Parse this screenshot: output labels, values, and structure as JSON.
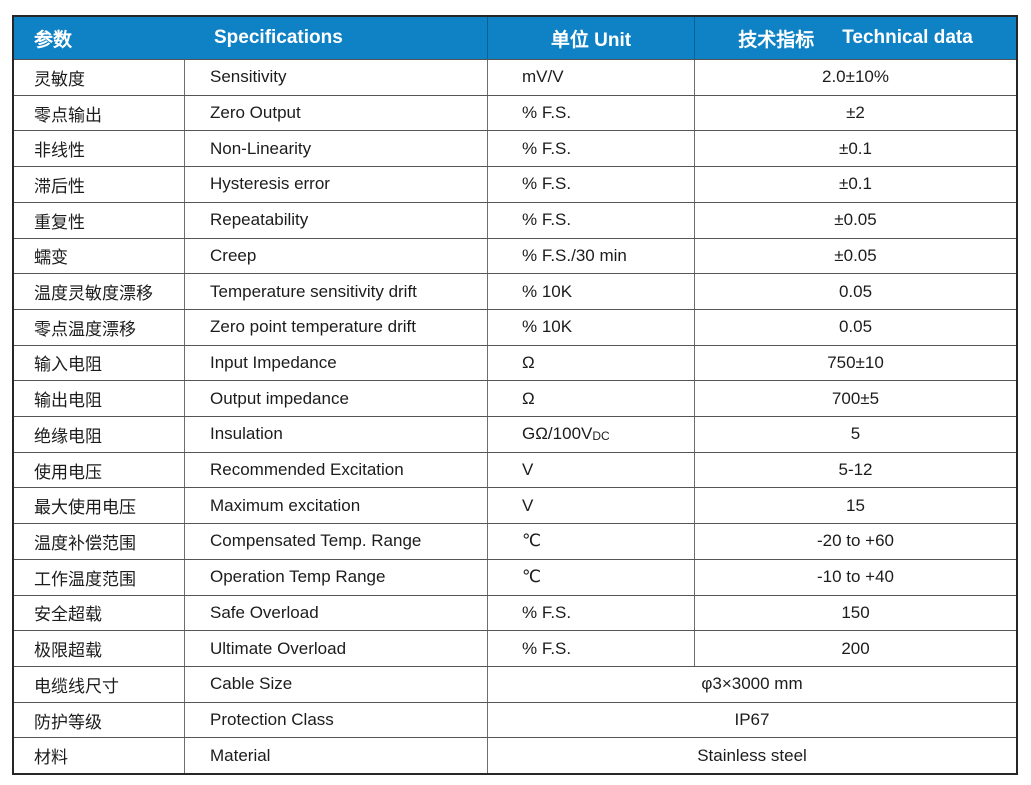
{
  "header": {
    "col1": "参数",
    "col2": "Specifications",
    "col3": "单位 Unit",
    "col4_zh": "技术指标",
    "col4_en": "Technical data"
  },
  "colors": {
    "header_bg": "#0f82c6",
    "header_text": "#ffffff",
    "body_text": "#1c1c1c",
    "grid_line": "#555555",
    "outer_border": "#262626"
  },
  "rows": [
    {
      "param_zh": "灵敏度",
      "spec_en": "Sensitivity",
      "unit": "mV/V",
      "unit_small": "",
      "value": "2.0±10%"
    },
    {
      "param_zh": "零点输出",
      "spec_en": "Zero Output",
      "unit": "% F.S.",
      "unit_small": "",
      "value": "±2"
    },
    {
      "param_zh": "非线性",
      "spec_en": "Non-Linearity",
      "unit": "% F.S.",
      "unit_small": "",
      "value": "±0.1"
    },
    {
      "param_zh": "滞后性",
      "spec_en": "Hysteresis error",
      "unit": "% F.S.",
      "unit_small": "",
      "value": "±0.1"
    },
    {
      "param_zh": "重复性",
      "spec_en": "Repeatability",
      "unit": "% F.S.",
      "unit_small": "",
      "value": "±0.05"
    },
    {
      "param_zh": "蠕变",
      "spec_en": "Creep",
      "unit": "% F.S./30 min",
      "unit_small": "",
      "value": "±0.05"
    },
    {
      "param_zh": "温度灵敏度漂移",
      "spec_en": "Temperature sensitivity drift",
      "unit": "% 10K",
      "unit_small": "",
      "value": "0.05"
    },
    {
      "param_zh": "零点温度漂移",
      "spec_en": "Zero point temperature drift",
      "unit": "% 10K",
      "unit_small": "",
      "value": "0.05"
    },
    {
      "param_zh": "输入电阻",
      "spec_en": "Input Impedance",
      "unit": "Ω",
      "unit_small": "",
      "value": "750±10"
    },
    {
      "param_zh": "输出电阻",
      "spec_en": "Output impedance",
      "unit": "Ω",
      "unit_small": "",
      "value": "700±5"
    },
    {
      "param_zh": "绝缘电阻",
      "spec_en": "Insulation",
      "unit": "GΩ/100V",
      "unit_small": "DC",
      "value": "5"
    },
    {
      "param_zh": "使用电压",
      "spec_en": "Recommended Excitation",
      "unit": "V",
      "unit_small": "",
      "value": "5-12"
    },
    {
      "param_zh": "最大使用电压",
      "spec_en": "Maximum excitation",
      "unit": "V",
      "unit_small": "",
      "value": "15"
    },
    {
      "param_zh": "温度补偿范围",
      "spec_en": "Compensated Temp. Range",
      "unit": "℃",
      "unit_small": "",
      "value": "-20 to +60"
    },
    {
      "param_zh": "工作温度范围",
      "spec_en": "Operation Temp Range",
      "unit": "℃",
      "unit_small": "",
      "value": "-10 to +40"
    },
    {
      "param_zh": "安全超载",
      "spec_en": "Safe Overload",
      "unit": "% F.S.",
      "unit_small": "",
      "value": "150"
    },
    {
      "param_zh": "极限超载",
      "spec_en": "Ultimate Overload",
      "unit": "% F.S.",
      "unit_small": "",
      "value": "200"
    },
    {
      "param_zh": "电缆线尺寸",
      "spec_en": "Cable Size",
      "merged_value": "φ3×3000 mm"
    },
    {
      "param_zh": "防护等级",
      "spec_en": "Protection Class",
      "merged_value": "IP67"
    },
    {
      "param_zh": "材料",
      "spec_en": "Material",
      "merged_value": "Stainless steel"
    }
  ]
}
